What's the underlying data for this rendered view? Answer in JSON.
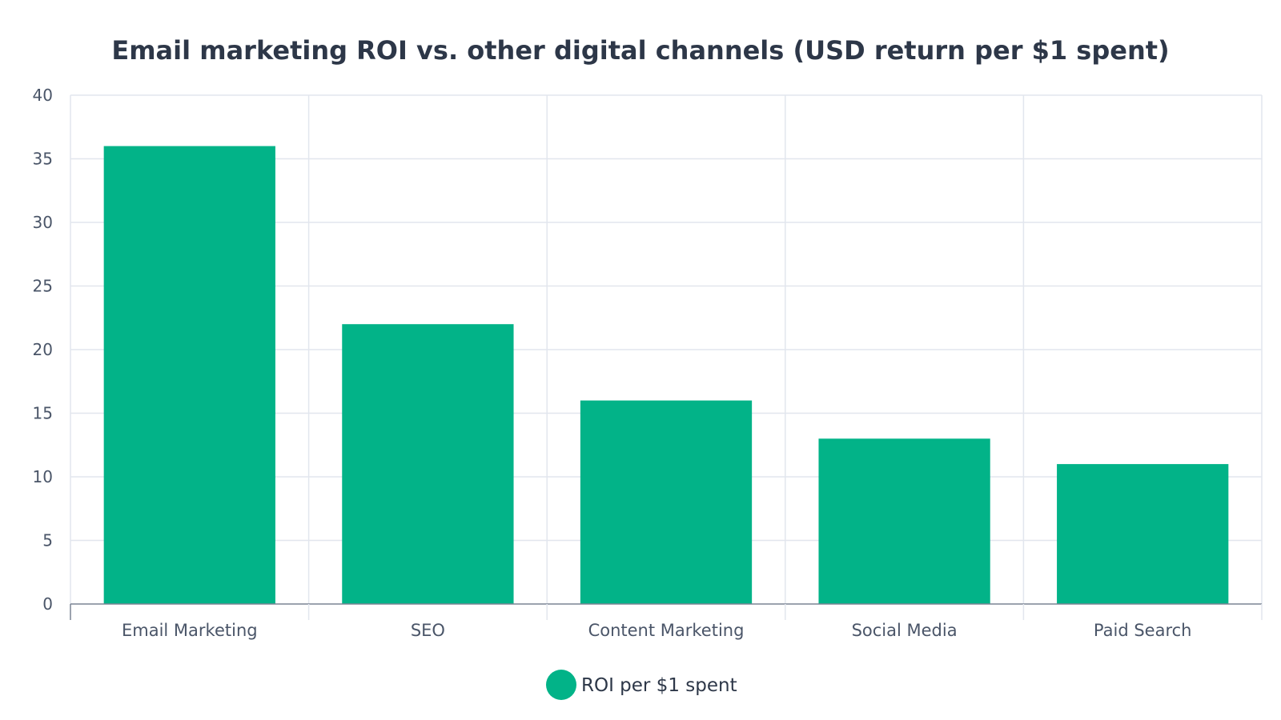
{
  "chart_data": {
    "type": "bar",
    "title": "Email marketing ROI vs. other digital channels (USD return per $1 spent)",
    "xlabel": "",
    "ylabel": "",
    "categories": [
      "Email Marketing",
      "SEO",
      "Content Marketing",
      "Social Media",
      "Paid Search"
    ],
    "series": [
      {
        "name": "ROI per $1 spent",
        "values": [
          36,
          22,
          16,
          13,
          11
        ],
        "color": "#02b388"
      }
    ],
    "ylim": [
      0,
      40
    ],
    "yticks": [
      0,
      5,
      10,
      15,
      20,
      25,
      30,
      35,
      40
    ],
    "grid": true,
    "legend_position": "bottom-center"
  }
}
